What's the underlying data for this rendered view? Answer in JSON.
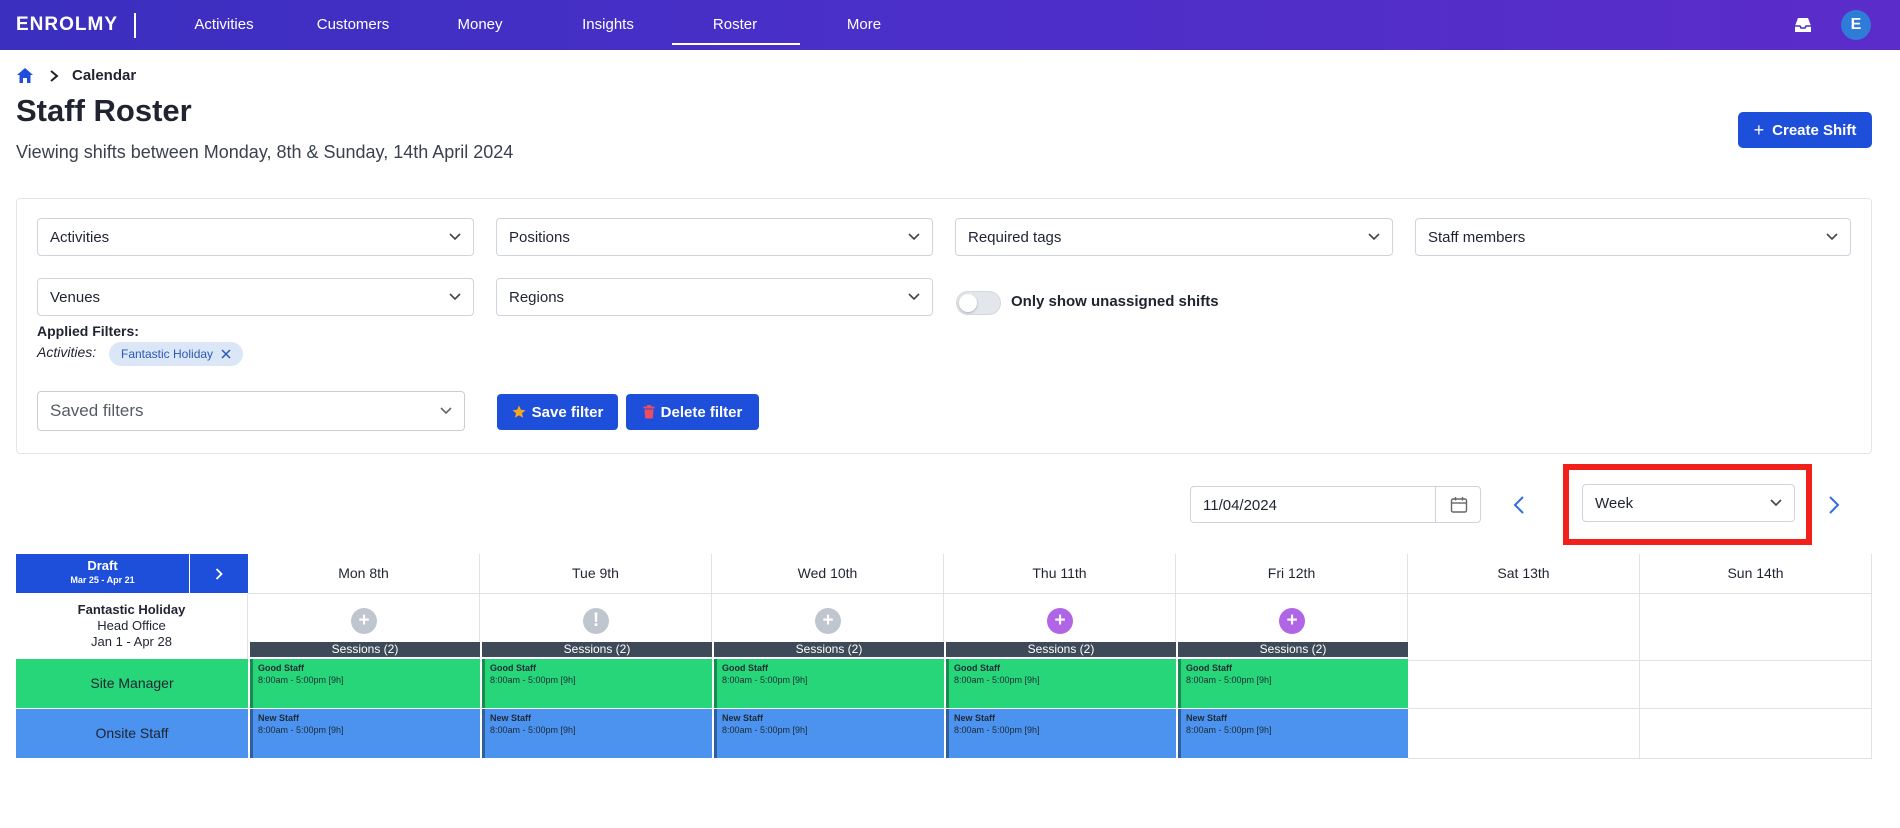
{
  "nav": {
    "logo": "ENROLMY",
    "items": [
      "Activities",
      "Customers",
      "Money",
      "Insights",
      "Roster",
      "More"
    ],
    "active": "Roster",
    "avatar_letter": "E"
  },
  "breadcrumb": {
    "current": "Calendar"
  },
  "page": {
    "title": "Staff Roster",
    "subtitle": "Viewing shifts between Monday, 8th & Sunday, 14th April 2024",
    "create_button": "Create Shift"
  },
  "filters": {
    "activities": "Activities",
    "positions": "Positions",
    "required_tags": "Required tags",
    "staff_members": "Staff members",
    "venues": "Venues",
    "regions": "Regions",
    "unassigned_toggle_label": "Only show unassigned shifts",
    "applied_heading": "Applied Filters:",
    "applied_category": "Activities:",
    "applied_chip": "Fantastic Holiday",
    "saved_filters_placeholder": "Saved filters",
    "save_button": "Save filter",
    "delete_button": "Delete filter"
  },
  "controls": {
    "date": "11/04/2024",
    "view": "Week"
  },
  "roster": {
    "draft_label": "Draft",
    "draft_range": "Mar 25 - Apr 21",
    "days": [
      "Mon 8th",
      "Tue 9th",
      "Wed 10th",
      "Thu 11th",
      "Fri 12th",
      "Sat 13th",
      "Sun 14th"
    ],
    "activity": {
      "name": "Fantastic Holiday",
      "venue": "Head Office",
      "range": "Jan 1 - Apr 28"
    },
    "day_markers": [
      {
        "symbol": "+",
        "color": "#c0c6d0"
      },
      {
        "symbol": "!",
        "color": "#c0c6d0"
      },
      {
        "symbol": "+",
        "color": "#c0c6d0"
      },
      {
        "symbol": "+",
        "color": "#b065e6"
      },
      {
        "symbol": "+",
        "color": "#b065e6"
      }
    ],
    "sessions_label": "Sessions (2)",
    "roles": [
      {
        "name": "Site Manager",
        "color": "#27d678",
        "shift_name": "Good Staff",
        "shift_time": "8:00am - 5:00pm [9h]"
      },
      {
        "name": "Onsite Staff",
        "color": "#4b93ee",
        "shift_name": "New Staff",
        "shift_time": "8:00am - 5:00pm [9h]"
      }
    ]
  }
}
